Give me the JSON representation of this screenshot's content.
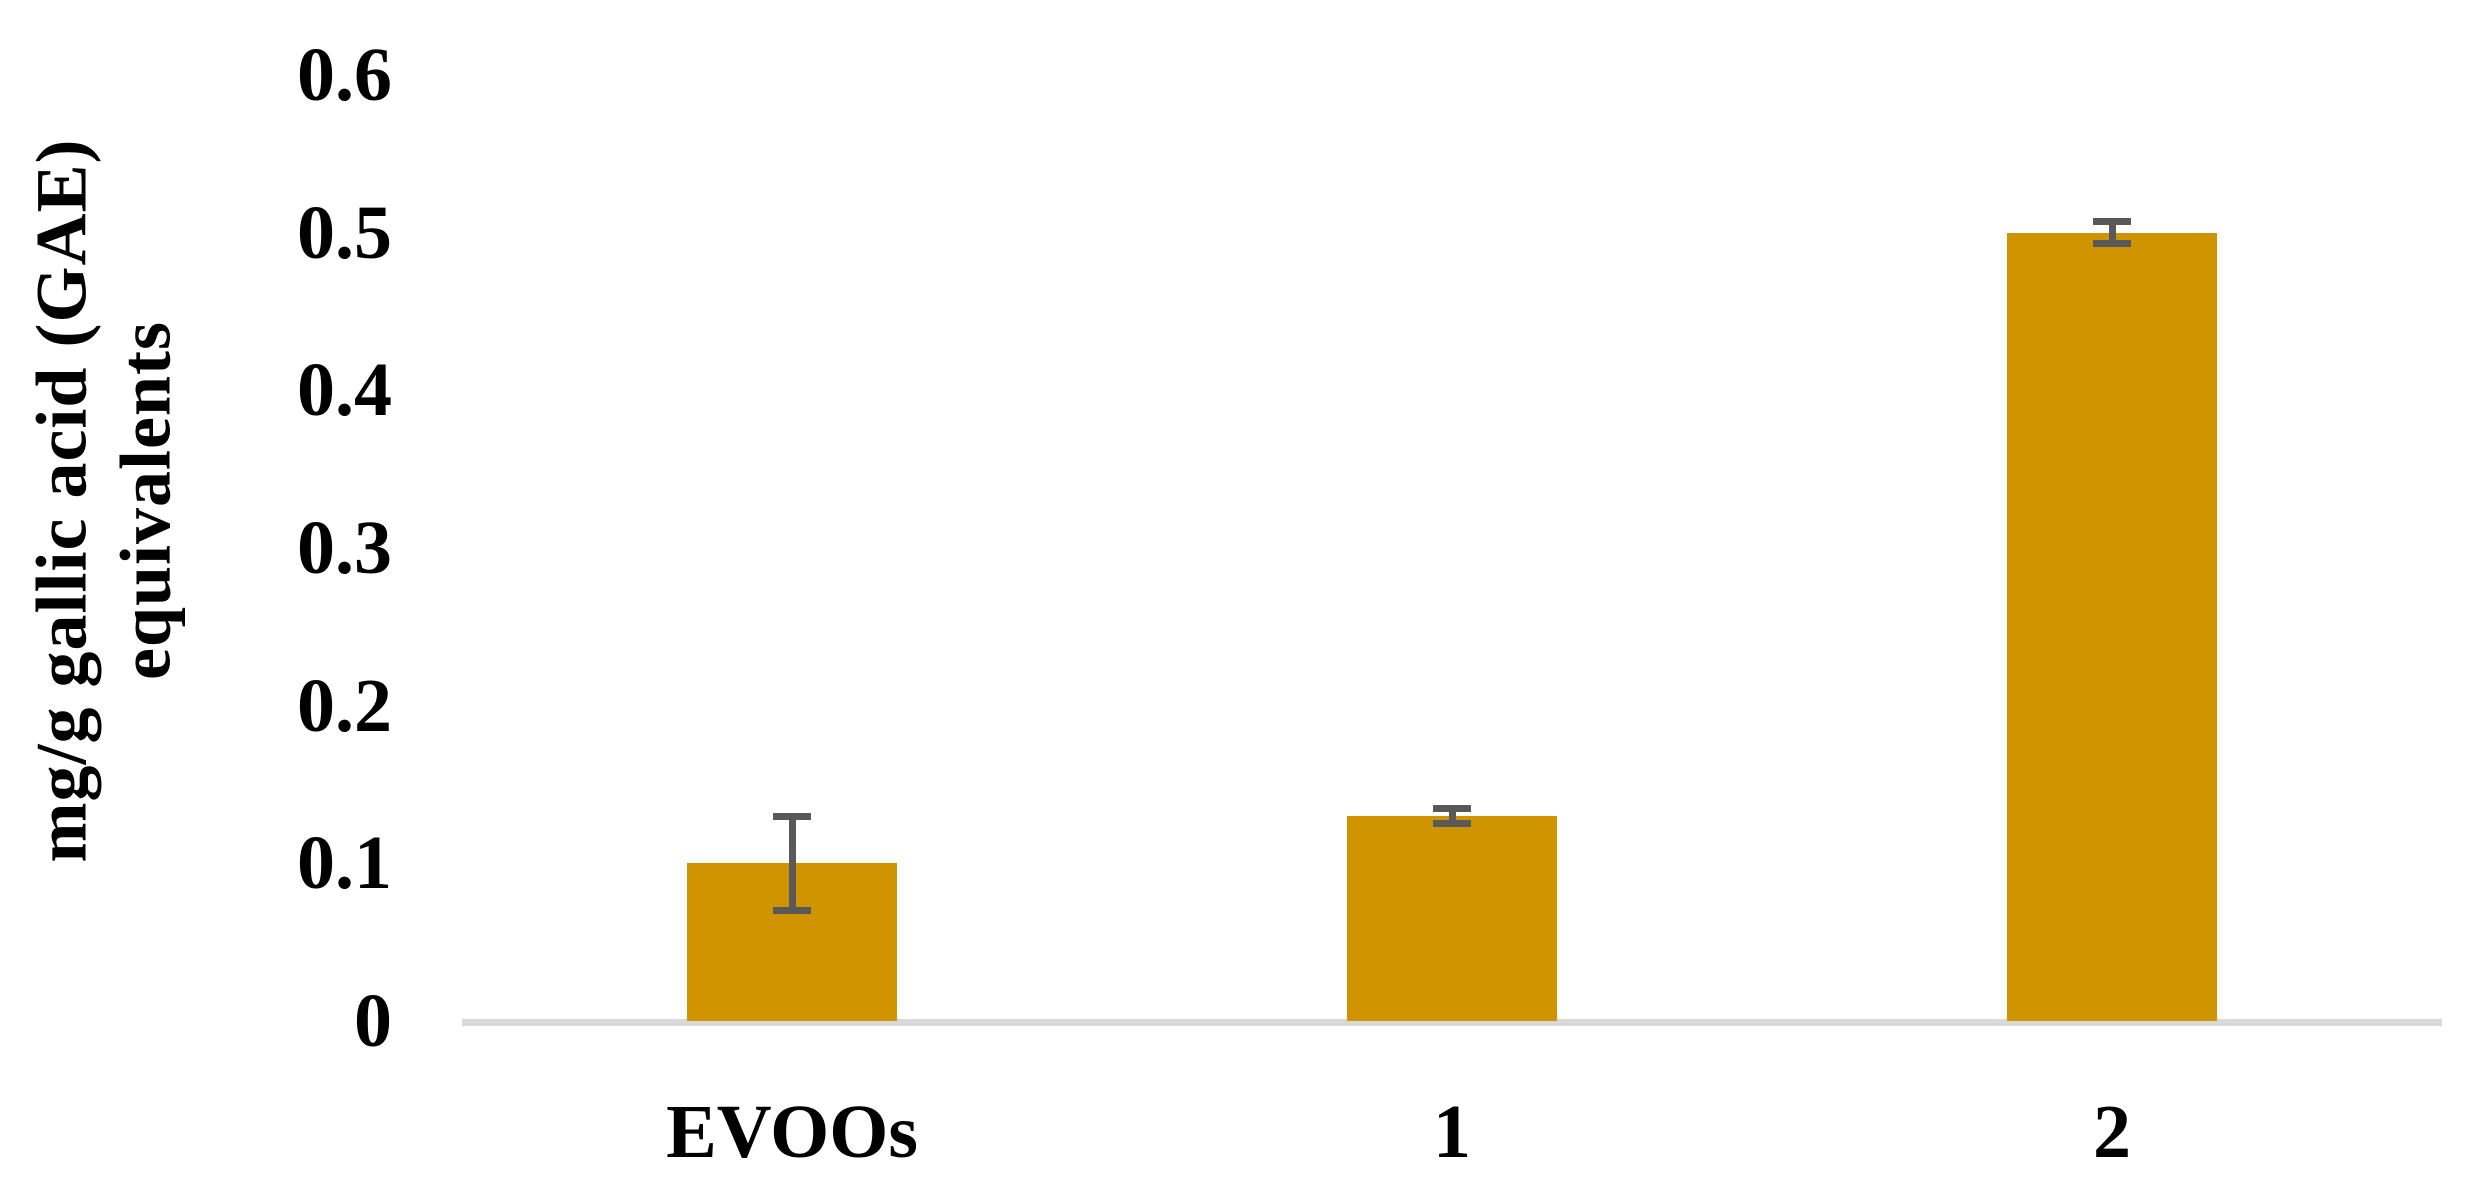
{
  "chart_data": {
    "type": "bar",
    "title": "",
    "categories": [
      "EVOOs",
      "1",
      "2"
    ],
    "values": [
      0.1,
      0.13,
      0.5
    ],
    "error_bars": [
      0.03,
      0.005,
      0.007
    ],
    "ylabel": "mg/g gallic acid (GAE) equivalents",
    "ylabel_lines": [
      "mg/g gallic acid (GAE)",
      "equivalents"
    ],
    "xlabel": "",
    "yticks": [
      0,
      0.1,
      0.2,
      0.3,
      0.4,
      0.5,
      0.6
    ],
    "ytick_labels": [
      "0",
      "0.1",
      "0.2",
      "0.3",
      "0.4",
      "0.5",
      "0.6"
    ],
    "ylim": [
      0,
      0.6
    ],
    "grid": false,
    "legend": false,
    "bar_color": "#CF9400",
    "error_bar_color": "#595959",
    "axis_line_color": "#D9D9D9",
    "text_color": "#000000"
  }
}
